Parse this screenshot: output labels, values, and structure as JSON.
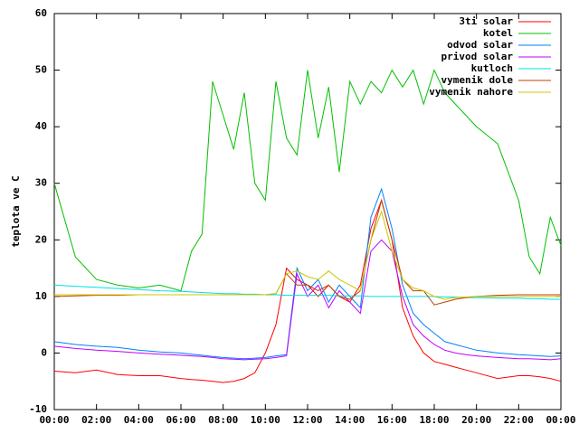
{
  "chart_data": {
    "type": "line",
    "ylabel": "teplota ve C",
    "xlim": [
      0,
      24
    ],
    "ylim": [
      -10,
      60
    ],
    "yticks": [
      -10,
      0,
      10,
      20,
      30,
      40,
      50,
      60
    ],
    "xticks": [
      {
        "value": 0,
        "label": "00:00"
      },
      {
        "value": 2,
        "label": "02:00"
      },
      {
        "value": 4,
        "label": "04:00"
      },
      {
        "value": 6,
        "label": "06:00"
      },
      {
        "value": 8,
        "label": "08:00"
      },
      {
        "value": 10,
        "label": "10:00"
      },
      {
        "value": 12,
        "label": "12:00"
      },
      {
        "value": 14,
        "label": "14:00"
      },
      {
        "value": 16,
        "label": "16:00"
      },
      {
        "value": 18,
        "label": "18:00"
      },
      {
        "value": 20,
        "label": "20:00"
      },
      {
        "value": 22,
        "label": "22:00"
      },
      {
        "value": 24,
        "label": "00:00"
      }
    ],
    "legend": "top-right",
    "x": [
      0,
      1,
      2,
      3,
      4,
      5,
      6,
      6.5,
      7,
      7.5,
      8,
      8.5,
      9,
      9.5,
      10,
      10.5,
      11,
      11.5,
      12,
      12.5,
      13,
      13.5,
      14,
      14.5,
      15,
      15.5,
      16,
      16.5,
      17,
      17.5,
      18,
      18.5,
      19,
      19.5,
      20,
      21,
      22,
      22.5,
      23,
      23.5,
      24
    ],
    "series": [
      {
        "name": "3ti solar",
        "color": "#ff0000",
        "values": [
          -3.2,
          -3.5,
          -3,
          -3.8,
          -4,
          -4,
          -4.5,
          -4.7,
          -4.8,
          -5,
          -5.2,
          -5,
          -4.5,
          -3.5,
          0,
          5,
          15,
          13,
          12,
          10,
          12,
          10,
          9,
          12,
          22,
          27,
          20,
          8,
          3,
          0,
          -1.5,
          -2,
          -2.5,
          -3,
          -3.5,
          -4.5,
          -4,
          -4,
          -4.2,
          -4.5,
          -5
        ]
      },
      {
        "name": "kotel",
        "color": "#00c000",
        "values": [
          30,
          17,
          13,
          12,
          11.5,
          12,
          11,
          18,
          21,
          48,
          42,
          36,
          46,
          30,
          27,
          48,
          38,
          35,
          50,
          38,
          47,
          32,
          48,
          44,
          48,
          46,
          50,
          47,
          50,
          44,
          50,
          46,
          44,
          42,
          40,
          37,
          27,
          17,
          14,
          24,
          19
        ]
      },
      {
        "name": "odvod solar",
        "color": "#0080ff",
        "values": [
          2,
          1.5,
          1.2,
          1,
          0.5,
          0.2,
          0,
          -0.2,
          -0.4,
          -0.6,
          -0.8,
          -0.9,
          -1,
          -0.9,
          -0.8,
          -0.5,
          -0.3,
          15,
          11,
          13,
          9,
          12,
          10,
          8,
          24,
          29,
          22,
          12,
          7,
          5,
          3.5,
          2,
          1.5,
          1,
          0.5,
          0,
          -0.3,
          -0.4,
          -0.5,
          -0.6,
          -0.5
        ]
      },
      {
        "name": "privod solar",
        "color": "#c000ff",
        "values": [
          1.2,
          0.8,
          0.5,
          0.3,
          0,
          -0.2,
          -0.4,
          -0.5,
          -0.6,
          -0.8,
          -1,
          -1.1,
          -1.2,
          -1.1,
          -1,
          -0.8,
          -0.5,
          14,
          10,
          12,
          8,
          11,
          9,
          7,
          18,
          20,
          18,
          10,
          5,
          3,
          1.5,
          0.5,
          0,
          -0.3,
          -0.5,
          -0.8,
          -1,
          -1,
          -1.1,
          -1.2,
          -1
        ]
      },
      {
        "name": "kutloch",
        "color": "#00e0e0",
        "values": [
          12,
          11.8,
          11.6,
          11.4,
          11.2,
          11,
          10.9,
          10.8,
          10.7,
          10.6,
          10.5,
          10.5,
          10.4,
          10.4,
          10.3,
          10.3,
          10.2,
          10.2,
          10.2,
          10.2,
          10.2,
          10.1,
          10.1,
          10.1,
          10,
          10,
          10,
          10,
          10,
          10,
          10,
          9.9,
          9.9,
          9.8,
          9.8,
          9.7,
          9.7,
          9.6,
          9.6,
          9.5,
          9.5
        ]
      },
      {
        "name": "vymenik dole",
        "color": "#c04000",
        "values": [
          10,
          10.1,
          10.2,
          10.2,
          10.3,
          10.3,
          10.3,
          10.3,
          10.3,
          10.3,
          10.3,
          10.3,
          10.3,
          10.3,
          10.3,
          10.5,
          14,
          12,
          12,
          11,
          12,
          10,
          9.5,
          11,
          20,
          27,
          20,
          13,
          11,
          11,
          8.5,
          9,
          9.5,
          9.8,
          10,
          10.2,
          10.3,
          10.3,
          10.3,
          10.3,
          10.3
        ]
      },
      {
        "name": "vymenik nahore",
        "color": "#c8c800",
        "values": [
          10.3,
          10.3,
          10.3,
          10.3,
          10.3,
          10.3,
          10.3,
          10.3,
          10.3,
          10.3,
          10.3,
          10.3,
          10.3,
          10.3,
          10.3,
          10.5,
          14,
          14.5,
          13.5,
          13,
          14.5,
          13,
          12,
          11,
          20,
          25,
          18,
          13,
          11.5,
          11,
          10,
          9.5,
          9.8,
          9.9,
          10,
          10,
          10,
          10,
          10,
          10,
          10
        ]
      }
    ]
  }
}
